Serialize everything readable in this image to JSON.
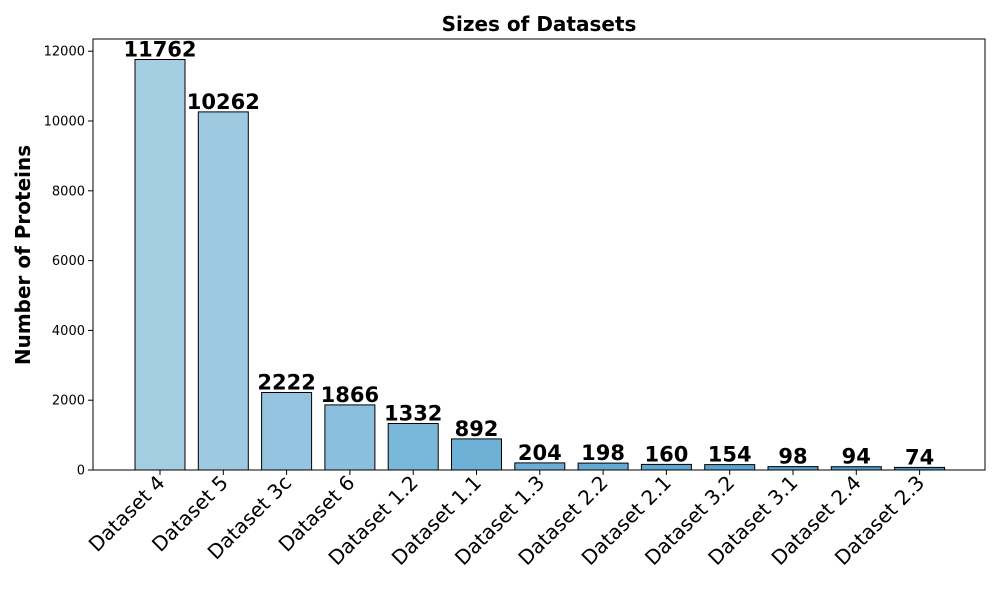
{
  "chart_data": {
    "type": "bar",
    "title": "Sizes of Datasets",
    "xlabel": "",
    "ylabel": "Number of Proteins",
    "ylim": [
      0,
      12350
    ],
    "yticks": [
      0,
      2000,
      4000,
      6000,
      8000,
      10000,
      12000
    ],
    "grid": false,
    "categories": [
      "Dataset 4",
      "Dataset 5",
      "Dataset 3c",
      "Dataset 6",
      "Dataset 1.2",
      "Dataset 1.1",
      "Dataset 1.3",
      "Dataset 2.2",
      "Dataset 2.1",
      "Dataset 3.2",
      "Dataset 3.1",
      "Dataset 2.4",
      "Dataset 2.3"
    ],
    "values": [
      11762,
      10262,
      2222,
      1866,
      1332,
      892,
      204,
      198,
      160,
      154,
      98,
      94,
      74
    ],
    "bar_colors": [
      "#a6cee3",
      "#9ecae1",
      "#94c4df",
      "#8bbfde",
      "#7ab8da",
      "#6fb0d6",
      "#6aaed6",
      "#64a9d3",
      "#5fa6d1",
      "#5aa2ce",
      "#559ecb",
      "#5099c8",
      "#4b95c4"
    ],
    "edge_color": "#000000"
  }
}
